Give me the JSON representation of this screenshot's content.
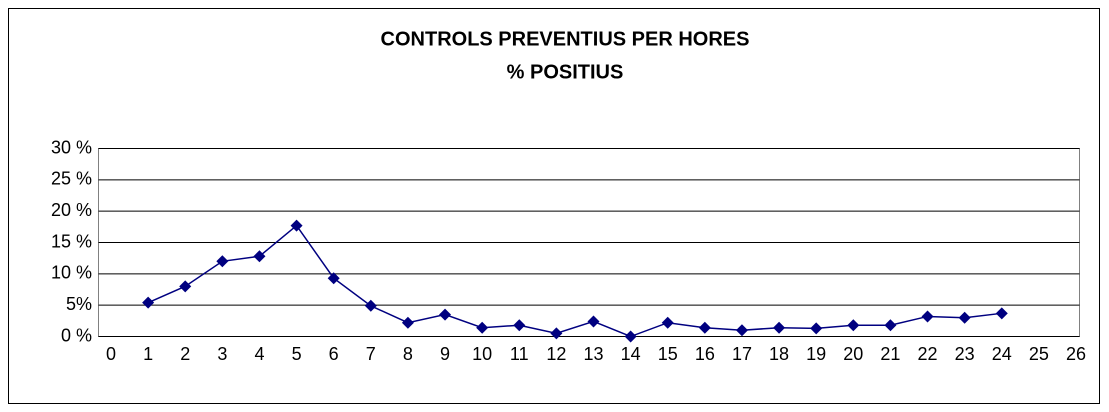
{
  "chart_data": {
    "type": "line",
    "title": "CONTROLS PREVENTIUS PER HORES",
    "subtitle": "% POSITIUS",
    "x": [
      1,
      2,
      3,
      4,
      5,
      6,
      7,
      8,
      9,
      10,
      11,
      12,
      13,
      14,
      15,
      16,
      17,
      18,
      19,
      20,
      21,
      22,
      23,
      24
    ],
    "series": [
      {
        "name": "% positius",
        "color": "#000080",
        "values": [
          5.4,
          8.0,
          12.0,
          12.8,
          17.7,
          9.3,
          4.9,
          2.2,
          3.5,
          1.4,
          1.8,
          0.5,
          2.4,
          0,
          2.2,
          1.4,
          1.0,
          1.4,
          1.3,
          1.8,
          1.8,
          3.2,
          3.0,
          3.7
        ]
      }
    ],
    "xlim": [
      0,
      26
    ],
    "xticks": [
      0,
      1,
      2,
      3,
      4,
      5,
      6,
      7,
      8,
      9,
      10,
      11,
      12,
      13,
      14,
      15,
      16,
      17,
      18,
      19,
      20,
      21,
      22,
      23,
      24,
      25,
      26
    ],
    "ylim": [
      0,
      30
    ],
    "yticks": [
      {
        "value": 0,
        "label": "0 %"
      },
      {
        "value": 5,
        "label": "5%"
      },
      {
        "value": 10,
        "label": "10 %"
      },
      {
        "value": 15,
        "label": "15 %"
      },
      {
        "value": 20,
        "label": "20 %"
      },
      {
        "value": 25,
        "label": "25 %"
      },
      {
        "value": 30,
        "label": "30 %"
      }
    ],
    "grid": true
  }
}
